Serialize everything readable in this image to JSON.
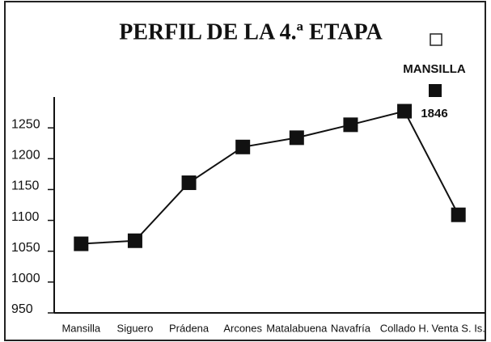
{
  "chart_data": {
    "type": "line",
    "title": "PERFIL DE LA 4.ª ETAPA",
    "annotations": [
      "MANSILLA",
      "1846"
    ],
    "categories": [
      "Mansilla",
      "Siguero",
      "Prádena",
      "Arcones",
      "Matalabuena",
      "Navafría",
      "Collado H.",
      "Venta S. Is."
    ],
    "values": [
      1062,
      1067,
      1161,
      1219,
      1234,
      1255,
      1277,
      1109
    ],
    "color": "#111111",
    "ylim": [
      950,
      1300
    ],
    "yticks": [
      950,
      1000,
      1050,
      1100,
      1150,
      1200,
      1250
    ]
  }
}
